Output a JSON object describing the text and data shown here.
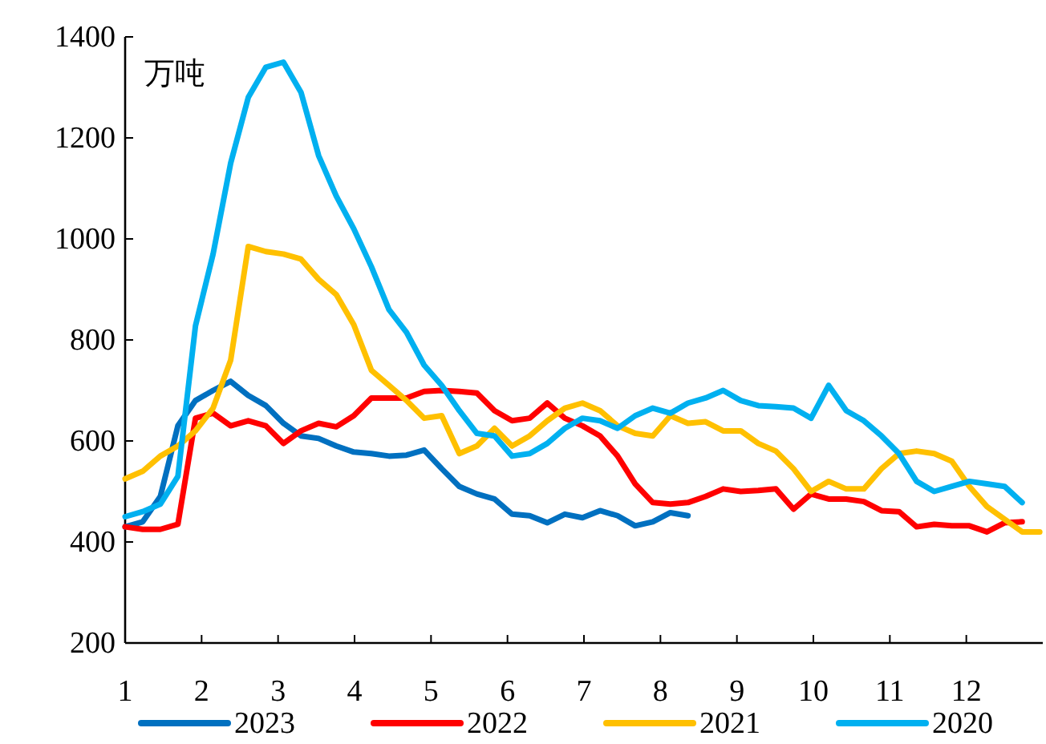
{
  "chart_data": {
    "type": "line",
    "ylabel": "万吨",
    "xlim": [
      1,
      13
    ],
    "xticks": [
      1,
      2,
      3,
      4,
      5,
      6,
      7,
      8,
      9,
      10,
      11,
      12
    ],
    "ylim": [
      200,
      1400
    ],
    "yticks": [
      200,
      400,
      600,
      800,
      1000,
      1200,
      1400
    ],
    "legend": "bottom",
    "grid": false,
    "marker": "none",
    "line_style": "solid",
    "series": [
      {
        "name": "2023",
        "color": "#0070c0",
        "x": [
          1,
          1.23,
          1.46,
          1.69,
          1.92,
          2.15,
          2.38,
          2.61,
          2.84,
          3.07,
          3.3,
          3.53,
          3.76,
          3.99,
          4.22,
          4.45,
          4.68,
          4.91,
          5.14,
          5.37,
          5.6,
          5.83,
          6.06,
          6.29,
          6.52,
          6.75,
          6.98,
          7.21,
          7.44,
          7.67,
          7.9,
          8.13,
          8.36
        ],
        "values": [
          430,
          440,
          490,
          630,
          680,
          700,
          718,
          690,
          670,
          635,
          610,
          605,
          590,
          578,
          575,
          570,
          572,
          582,
          545,
          510,
          495,
          485,
          455,
          452,
          438,
          455,
          448,
          462,
          452,
          432,
          440,
          458,
          452
        ]
      },
      {
        "name": "2022",
        "color": "#ff0000",
        "x": [
          1,
          1.23,
          1.46,
          1.69,
          1.92,
          2.15,
          2.38,
          2.61,
          2.84,
          3.07,
          3.3,
          3.53,
          3.76,
          3.99,
          4.22,
          4.45,
          4.68,
          4.91,
          5.14,
          5.37,
          5.6,
          5.83,
          6.06,
          6.29,
          6.52,
          6.75,
          6.98,
          7.21,
          7.44,
          7.67,
          7.9,
          8.13,
          8.36,
          8.59,
          8.82,
          9.05,
          9.28,
          9.51,
          9.74,
          9.97,
          10.2,
          10.43,
          10.66,
          10.89,
          11.12,
          11.35,
          11.58,
          11.81,
          12.04,
          12.27,
          12.5,
          12.73
        ],
        "values": [
          430,
          425,
          425,
          435,
          645,
          655,
          630,
          640,
          630,
          595,
          620,
          635,
          628,
          650,
          685,
          685,
          685,
          698,
          700,
          698,
          695,
          660,
          640,
          645,
          675,
          645,
          630,
          610,
          570,
          515,
          478,
          475,
          478,
          490,
          505,
          500,
          502,
          505,
          465,
          495,
          485,
          485,
          480,
          462,
          460,
          430,
          435,
          432,
          432,
          420,
          438,
          440
        ]
      },
      {
        "name": "2021",
        "color": "#ffc000",
        "x": [
          1,
          1.23,
          1.46,
          1.69,
          1.92,
          2.15,
          2.38,
          2.61,
          2.84,
          3.07,
          3.3,
          3.53,
          3.76,
          3.99,
          4.22,
          4.45,
          4.68,
          4.91,
          5.14,
          5.37,
          5.6,
          5.83,
          6.06,
          6.29,
          6.52,
          6.75,
          6.98,
          7.21,
          7.44,
          7.67,
          7.9,
          8.13,
          8.36,
          8.59,
          8.82,
          9.05,
          9.28,
          9.51,
          9.74,
          9.97,
          10.2,
          10.43,
          10.66,
          10.89,
          11.12,
          11.35,
          11.58,
          11.81,
          12.04,
          12.27,
          12.5,
          12.73,
          12.96
        ],
        "values": [
          525,
          540,
          570,
          590,
          620,
          665,
          760,
          985,
          975,
          970,
          960,
          920,
          890,
          830,
          740,
          710,
          680,
          645,
          650,
          575,
          590,
          625,
          590,
          610,
          640,
          665,
          675,
          660,
          630,
          615,
          610,
          650,
          635,
          638,
          620,
          620,
          595,
          580,
          545,
          500,
          520,
          505,
          505,
          545,
          575,
          580,
          575,
          560,
          510,
          470,
          445,
          420,
          420
        ]
      },
      {
        "name": "2020",
        "color": "#00b0f0",
        "x": [
          1,
          1.23,
          1.46,
          1.69,
          1.92,
          2.15,
          2.38,
          2.61,
          2.84,
          3.07,
          3.3,
          3.53,
          3.76,
          3.99,
          4.22,
          4.45,
          4.68,
          4.91,
          5.14,
          5.37,
          5.6,
          5.83,
          6.06,
          6.29,
          6.52,
          6.75,
          6.98,
          7.21,
          7.44,
          7.67,
          7.9,
          8.13,
          8.36,
          8.59,
          8.82,
          9.05,
          9.28,
          9.51,
          9.74,
          9.97,
          10.2,
          10.43,
          10.66,
          10.89,
          11.12,
          11.35,
          11.58,
          11.81,
          12.04,
          12.27,
          12.5,
          12.73
        ],
        "values": [
          450,
          460,
          475,
          530,
          828,
          970,
          1150,
          1280,
          1340,
          1350,
          1290,
          1165,
          1085,
          1020,
          945,
          860,
          815,
          750,
          710,
          660,
          615,
          610,
          570,
          575,
          595,
          625,
          645,
          640,
          625,
          650,
          665,
          655,
          675,
          685,
          700,
          680,
          670,
          668,
          665,
          645,
          710,
          660,
          640,
          610,
          575,
          520,
          500,
          510,
          520,
          515,
          510,
          478
        ]
      }
    ]
  }
}
